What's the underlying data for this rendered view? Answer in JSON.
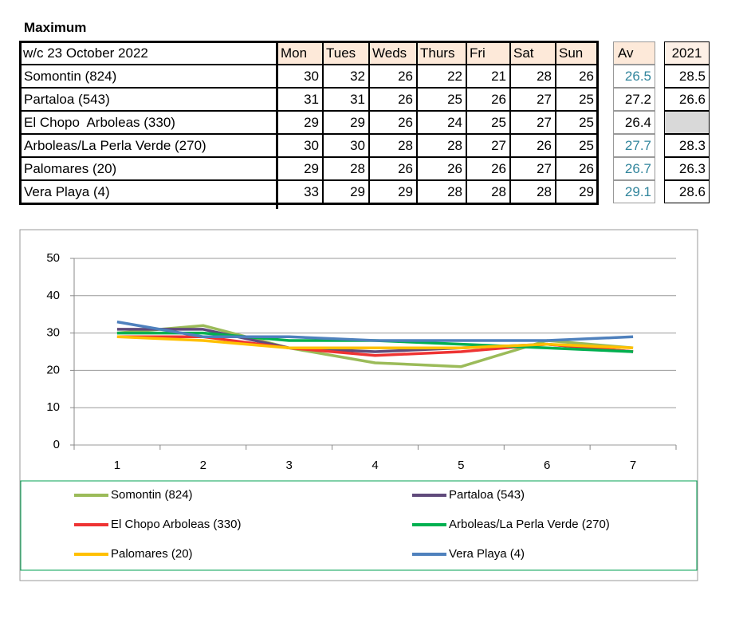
{
  "title": "Maximum",
  "table": {
    "header": [
      "w/c 23 October 2022",
      "Mon",
      "Tues",
      "Weds",
      "Thurs",
      "Fri",
      "Sat",
      "Sun"
    ],
    "av_header": "Av",
    "prev_header": "2021",
    "rows": [
      {
        "name": "Somontin (824)",
        "values": [
          30,
          32,
          26,
          22,
          21,
          28,
          26
        ],
        "av": 26.5,
        "av_color": "#31859c",
        "prev": 28.5
      },
      {
        "name": "Partaloa (543)",
        "values": [
          31,
          31,
          26,
          25,
          26,
          27,
          25
        ],
        "av": 27.2,
        "av_color": "#000000",
        "prev": 26.6
      },
      {
        "name": "El Chopo  Arboleas (330)",
        "values": [
          29,
          29,
          26,
          24,
          25,
          27,
          25
        ],
        "av": 26.4,
        "av_color": "#000000",
        "prev": null
      },
      {
        "name": "Arboleas/La Perla Verde (270)",
        "values": [
          30,
          30,
          28,
          28,
          27,
          26,
          25
        ],
        "av": 27.7,
        "av_color": "#31859c",
        "prev": 28.3
      },
      {
        "name": "Palomares (20)",
        "values": [
          29,
          28,
          26,
          26,
          26,
          27,
          26
        ],
        "av": 26.7,
        "av_color": "#31859c",
        "prev": 26.3
      },
      {
        "name": "Vera Playa (4)",
        "values": [
          33,
          29,
          29,
          28,
          28,
          28,
          29
        ],
        "av": 29.1,
        "av_color": "#31859c",
        "prev": 28.6
      }
    ]
  },
  "chart_data": {
    "type": "line",
    "categories": [
      "1",
      "2",
      "3",
      "4",
      "5",
      "6",
      "7"
    ],
    "series": [
      {
        "name": "Somontin (824)",
        "color": "#9bbb59",
        "values": [
          30,
          32,
          26,
          22,
          21,
          28,
          26
        ]
      },
      {
        "name": "Partaloa (543)",
        "color": "#604a7b",
        "values": [
          31,
          31,
          26,
          25,
          26,
          27,
          25
        ]
      },
      {
        "name": "El Chopo  Arboleas (330)",
        "color": "#ee3333",
        "values": [
          29,
          29,
          26,
          24,
          25,
          27,
          25
        ]
      },
      {
        "name": "Arboleas/La Perla Verde (270)",
        "color": "#00b050",
        "values": [
          30,
          30,
          28,
          28,
          27,
          26,
          25
        ]
      },
      {
        "name": "Palomares (20)",
        "color": "#ffc000",
        "values": [
          29,
          28,
          26,
          26,
          26,
          27,
          26
        ]
      },
      {
        "name": "Vera Playa (4)",
        "color": "#4f81bd",
        "values": [
          33,
          29,
          29,
          28,
          28,
          28,
          29
        ]
      }
    ],
    "ylim": [
      0,
      50
    ],
    "yticks": [
      0,
      10,
      20,
      30,
      40,
      50
    ],
    "grid": true,
    "legend": "bottom"
  }
}
